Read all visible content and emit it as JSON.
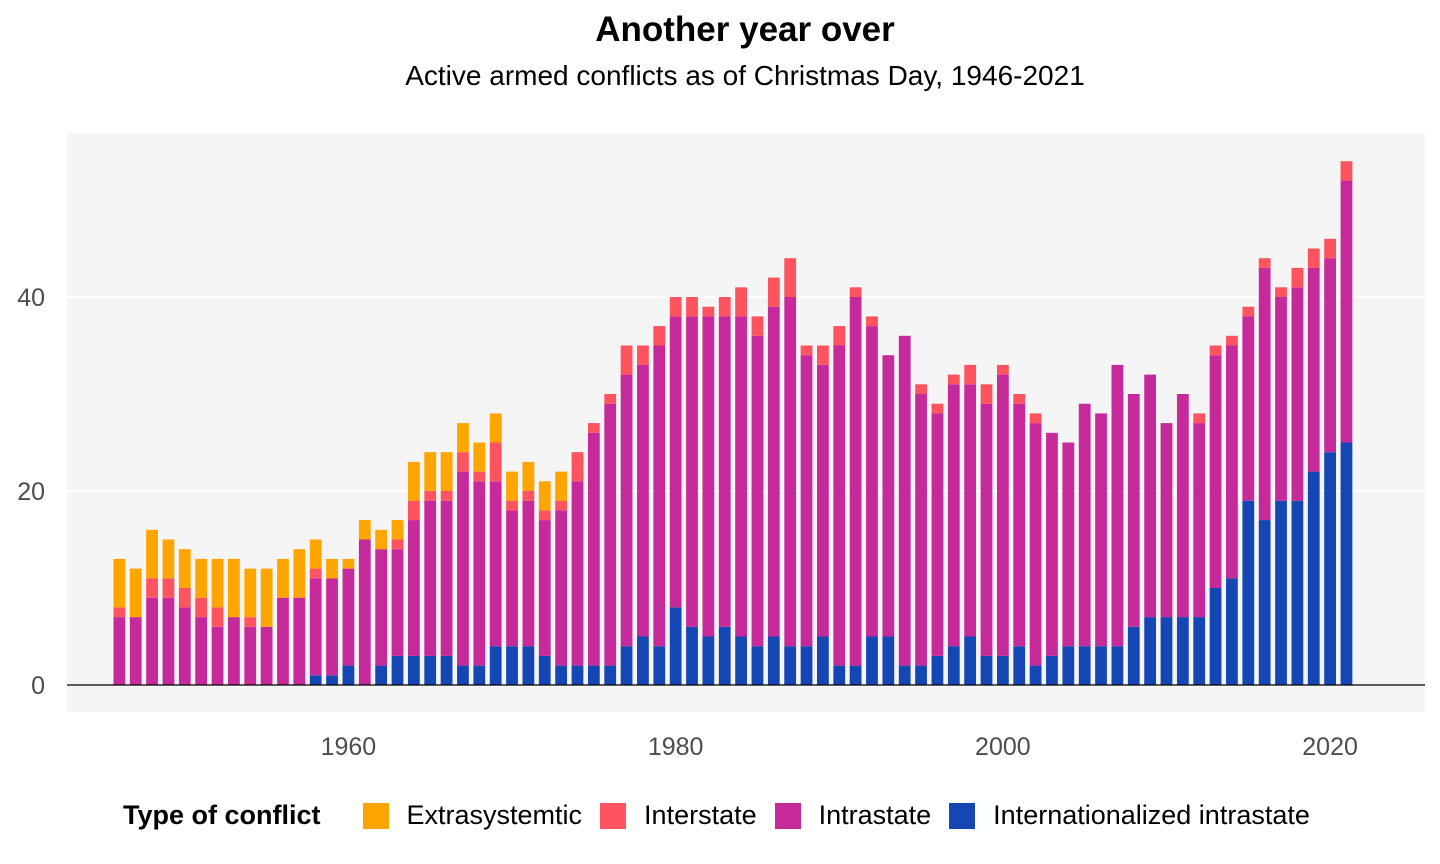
{
  "chart_data": {
    "type": "bar",
    "stacked": true,
    "title": "Another year over",
    "subtitle": "Active armed conflicts as of Christmas Day, 1946-2021",
    "xlabel": "",
    "ylabel": "",
    "xticks": [
      1960,
      1980,
      2000,
      2020
    ],
    "yticks": [
      0,
      20,
      40
    ],
    "ylim": [
      0,
      56
    ],
    "xlim": [
      1942.8,
      2025.8
    ],
    "grid": true,
    "legend_position": "bottom",
    "legend_title": "Type of conflict",
    "categories": [
      1946,
      1947,
      1948,
      1949,
      1950,
      1951,
      1952,
      1953,
      1954,
      1955,
      1956,
      1957,
      1958,
      1959,
      1960,
      1961,
      1962,
      1963,
      1964,
      1965,
      1966,
      1967,
      1968,
      1969,
      1970,
      1971,
      1972,
      1973,
      1974,
      1975,
      1976,
      1977,
      1978,
      1979,
      1980,
      1981,
      1982,
      1983,
      1984,
      1985,
      1986,
      1987,
      1988,
      1989,
      1990,
      1991,
      1992,
      1993,
      1994,
      1995,
      1996,
      1997,
      1998,
      1999,
      2000,
      2001,
      2002,
      2003,
      2004,
      2005,
      2006,
      2007,
      2008,
      2009,
      2010,
      2011,
      2012,
      2013,
      2014,
      2015,
      2016,
      2017,
      2018,
      2019,
      2020,
      2021
    ],
    "series": [
      {
        "name": "Internationalized intrastate",
        "color": "#1446b4",
        "values": [
          0,
          0,
          0,
          0,
          0,
          0,
          0,
          0,
          0,
          0,
          0,
          0,
          1,
          1,
          2,
          0,
          2,
          3,
          3,
          3,
          3,
          2,
          2,
          4,
          4,
          4,
          3,
          2,
          2,
          2,
          2,
          4,
          5,
          4,
          8,
          6,
          5,
          6,
          5,
          4,
          5,
          4,
          4,
          5,
          2,
          2,
          5,
          5,
          2,
          2,
          3,
          4,
          5,
          3,
          3,
          4,
          2,
          3,
          4,
          4,
          4,
          4,
          6,
          7,
          7,
          7,
          7,
          10,
          11,
          19,
          17,
          19,
          19,
          22,
          24,
          25
        ]
      },
      {
        "name": "Intrastate",
        "color": "#c62a9a",
        "values": [
          7,
          7,
          9,
          9,
          8,
          7,
          6,
          7,
          6,
          6,
          9,
          9,
          10,
          10,
          10,
          15,
          12,
          11,
          14,
          16,
          16,
          20,
          19,
          17,
          14,
          15,
          14,
          16,
          19,
          24,
          27,
          28,
          28,
          31,
          30,
          32,
          33,
          32,
          33,
          32,
          34,
          36,
          30,
          28,
          33,
          38,
          32,
          29,
          34,
          28,
          25,
          27,
          26,
          26,
          29,
          25,
          25,
          23,
          21,
          25,
          24,
          29,
          24,
          25,
          20,
          23,
          20,
          24,
          24,
          19,
          26,
          21,
          22,
          21,
          20,
          27
        ]
      },
      {
        "name": "Interstate",
        "color": "#ff535f",
        "values": [
          1,
          0,
          2,
          2,
          2,
          2,
          2,
          0,
          1,
          0,
          0,
          0,
          1,
          0,
          0,
          0,
          0,
          1,
          2,
          1,
          1,
          2,
          1,
          4,
          1,
          1,
          1,
          1,
          3,
          1,
          1,
          3,
          2,
          2,
          2,
          2,
          1,
          2,
          3,
          2,
          3,
          4,
          1,
          2,
          2,
          1,
          1,
          0,
          0,
          1,
          1,
          1,
          2,
          2,
          1,
          1,
          1,
          0,
          0,
          0,
          0,
          0,
          0,
          0,
          0,
          0,
          1,
          1,
          1,
          1,
          1,
          1,
          2,
          2,
          2,
          2
        ]
      },
      {
        "name": "Extrasystemtic",
        "color": "#ffa500",
        "values": [
          5,
          5,
          5,
          4,
          4,
          4,
          5,
          6,
          5,
          6,
          4,
          5,
          3,
          2,
          1,
          2,
          2,
          2,
          4,
          4,
          4,
          3,
          3,
          3,
          3,
          3,
          3,
          3,
          0,
          0,
          0,
          0,
          0,
          0,
          0,
          0,
          0,
          0,
          0,
          0,
          0,
          0,
          0,
          0,
          0,
          0,
          0,
          0,
          0,
          0,
          0,
          0,
          0,
          0,
          0,
          0,
          0,
          0,
          0,
          0,
          0,
          0,
          0,
          0,
          0,
          0,
          0,
          0,
          0,
          0,
          0,
          0,
          0,
          0,
          0,
          0
        ]
      }
    ]
  },
  "legend_order": [
    "Extrasystemtic",
    "Interstate",
    "Intrastate",
    "Internationalized intrastate"
  ]
}
